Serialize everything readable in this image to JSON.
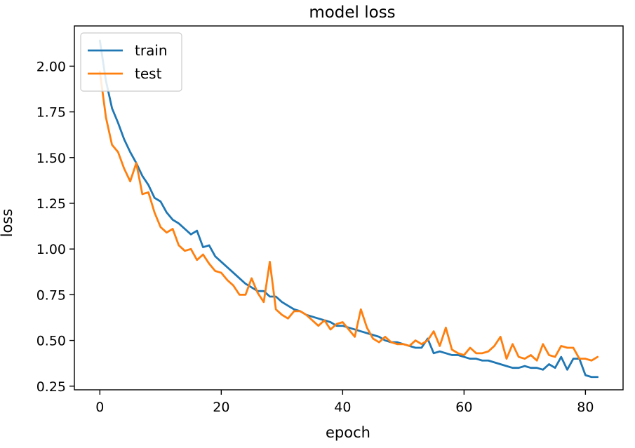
{
  "chart_data": {
    "type": "line",
    "title": "model loss",
    "xlabel": "epoch",
    "ylabel": "loss",
    "xlim": [
      -4.2,
      86.2
    ],
    "ylim": [
      0.23,
      2.22
    ],
    "xticks": [
      0,
      20,
      40,
      60,
      80
    ],
    "xtick_labels": [
      "0",
      "20",
      "40",
      "60",
      "80"
    ],
    "yticks": [
      0.25,
      0.5,
      0.75,
      1.0,
      1.25,
      1.5,
      1.75,
      2.0
    ],
    "ytick_labels": [
      "0.25",
      "0.50",
      "0.75",
      "1.00",
      "1.25",
      "1.50",
      "1.75",
      "2.00"
    ],
    "grid": false,
    "legend_position": "top-left",
    "x": [
      0,
      1,
      2,
      3,
      4,
      5,
      6,
      7,
      8,
      9,
      10,
      11,
      12,
      13,
      14,
      15,
      16,
      17,
      18,
      19,
      20,
      21,
      22,
      23,
      24,
      25,
      26,
      27,
      28,
      29,
      30,
      31,
      32,
      33,
      34,
      35,
      36,
      37,
      38,
      39,
      40,
      41,
      42,
      43,
      44,
      45,
      46,
      47,
      48,
      49,
      50,
      51,
      52,
      53,
      54,
      55,
      56,
      57,
      58,
      59,
      60,
      61,
      62,
      63,
      64,
      65,
      66,
      67,
      68,
      69,
      70,
      71,
      72,
      73,
      74,
      75,
      76,
      77,
      78,
      79,
      80,
      81,
      82
    ],
    "series": [
      {
        "name": "train",
        "color": "#1f77b4",
        "values": [
          2.14,
          1.92,
          1.77,
          1.69,
          1.6,
          1.53,
          1.47,
          1.4,
          1.35,
          1.28,
          1.26,
          1.2,
          1.16,
          1.14,
          1.11,
          1.08,
          1.1,
          1.01,
          1.02,
          0.96,
          0.93,
          0.9,
          0.87,
          0.84,
          0.81,
          0.79,
          0.77,
          0.77,
          0.74,
          0.74,
          0.71,
          0.69,
          0.67,
          0.66,
          0.64,
          0.63,
          0.62,
          0.61,
          0.6,
          0.58,
          0.58,
          0.57,
          0.56,
          0.55,
          0.54,
          0.53,
          0.52,
          0.5,
          0.49,
          0.49,
          0.48,
          0.47,
          0.46,
          0.46,
          0.51,
          0.43,
          0.44,
          0.43,
          0.42,
          0.42,
          0.41,
          0.4,
          0.4,
          0.39,
          0.39,
          0.38,
          0.37,
          0.36,
          0.35,
          0.35,
          0.36,
          0.35,
          0.35,
          0.34,
          0.37,
          0.35,
          0.41,
          0.34,
          0.4,
          0.4,
          0.31,
          0.3,
          0.3
        ]
      },
      {
        "name": "test",
        "color": "#ff7f0e",
        "values": [
          1.97,
          1.72,
          1.57,
          1.53,
          1.44,
          1.37,
          1.47,
          1.3,
          1.31,
          1.2,
          1.12,
          1.09,
          1.11,
          1.02,
          0.99,
          1.0,
          0.94,
          0.97,
          0.92,
          0.88,
          0.87,
          0.83,
          0.8,
          0.75,
          0.75,
          0.84,
          0.76,
          0.71,
          0.93,
          0.67,
          0.64,
          0.62,
          0.66,
          0.66,
          0.64,
          0.61,
          0.58,
          0.61,
          0.56,
          0.59,
          0.6,
          0.56,
          0.52,
          0.67,
          0.57,
          0.51,
          0.49,
          0.52,
          0.49,
          0.48,
          0.48,
          0.47,
          0.5,
          0.48,
          0.5,
          0.55,
          0.47,
          0.57,
          0.45,
          0.43,
          0.42,
          0.46,
          0.43,
          0.43,
          0.44,
          0.47,
          0.52,
          0.4,
          0.48,
          0.41,
          0.4,
          0.42,
          0.39,
          0.48,
          0.42,
          0.41,
          0.47,
          0.46,
          0.46,
          0.4,
          0.4,
          0.39,
          0.41
        ]
      }
    ]
  }
}
